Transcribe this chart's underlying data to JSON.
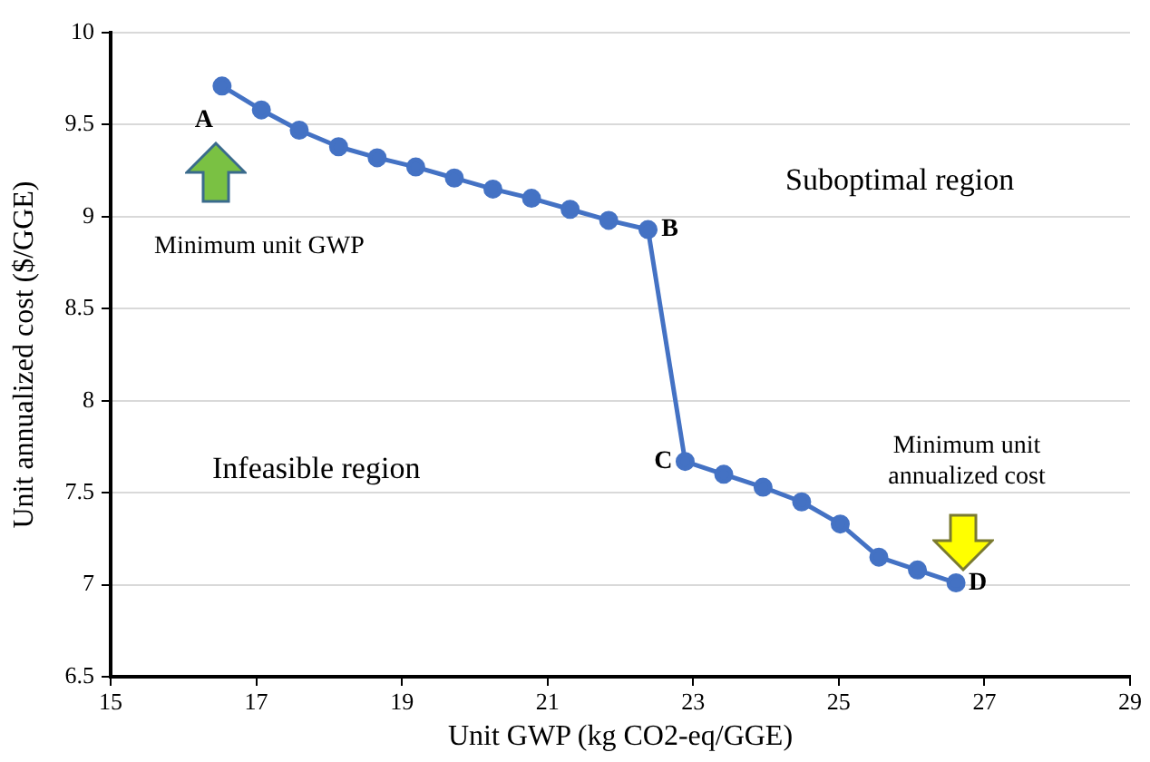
{
  "chart_data": {
    "type": "line",
    "xlabel": "Unit GWP (kg CO2-eq/GGE)",
    "ylabel": "Unit annualized cost ($/GGE)",
    "x": [
      16.53,
      17.07,
      17.59,
      18.13,
      18.66,
      19.19,
      19.72,
      20.25,
      20.78,
      21.31,
      21.84,
      22.38,
      22.89,
      23.42,
      23.96,
      24.49,
      25.02,
      25.55,
      26.08,
      26.61
    ],
    "series": [
      {
        "color": "#4472c4",
        "values": [
          9.71,
          9.58,
          9.47,
          9.38,
          9.32,
          9.27,
          9.21,
          9.15,
          9.1,
          9.04,
          8.98,
          8.93,
          7.67,
          7.6,
          7.53,
          7.45,
          7.33,
          7.15,
          7.08,
          7.01
        ]
      }
    ],
    "xlim": [
      15,
      29
    ],
    "xticks": [
      15,
      17,
      19,
      21,
      23,
      25,
      27,
      29
    ],
    "ylim": [
      6.5,
      10
    ],
    "yticks": [
      6.5,
      7,
      7.5,
      8,
      8.5,
      9,
      9.5,
      10
    ],
    "grid": "y",
    "legend": false,
    "marker": "circle",
    "line_style": "solid",
    "annotations": [
      {
        "text": "A",
        "x": 16.53,
        "y": 9.71
      },
      {
        "text": "B",
        "x": 22.38,
        "y": 8.93
      },
      {
        "text": "C",
        "x": 22.89,
        "y": 7.67
      },
      {
        "text": "D",
        "x": 26.61,
        "y": 7.01
      },
      "Minimum unit GWP",
      "Minimum unit annualized cost",
      "Suboptimal region",
      "Infeasible region"
    ]
  }
}
